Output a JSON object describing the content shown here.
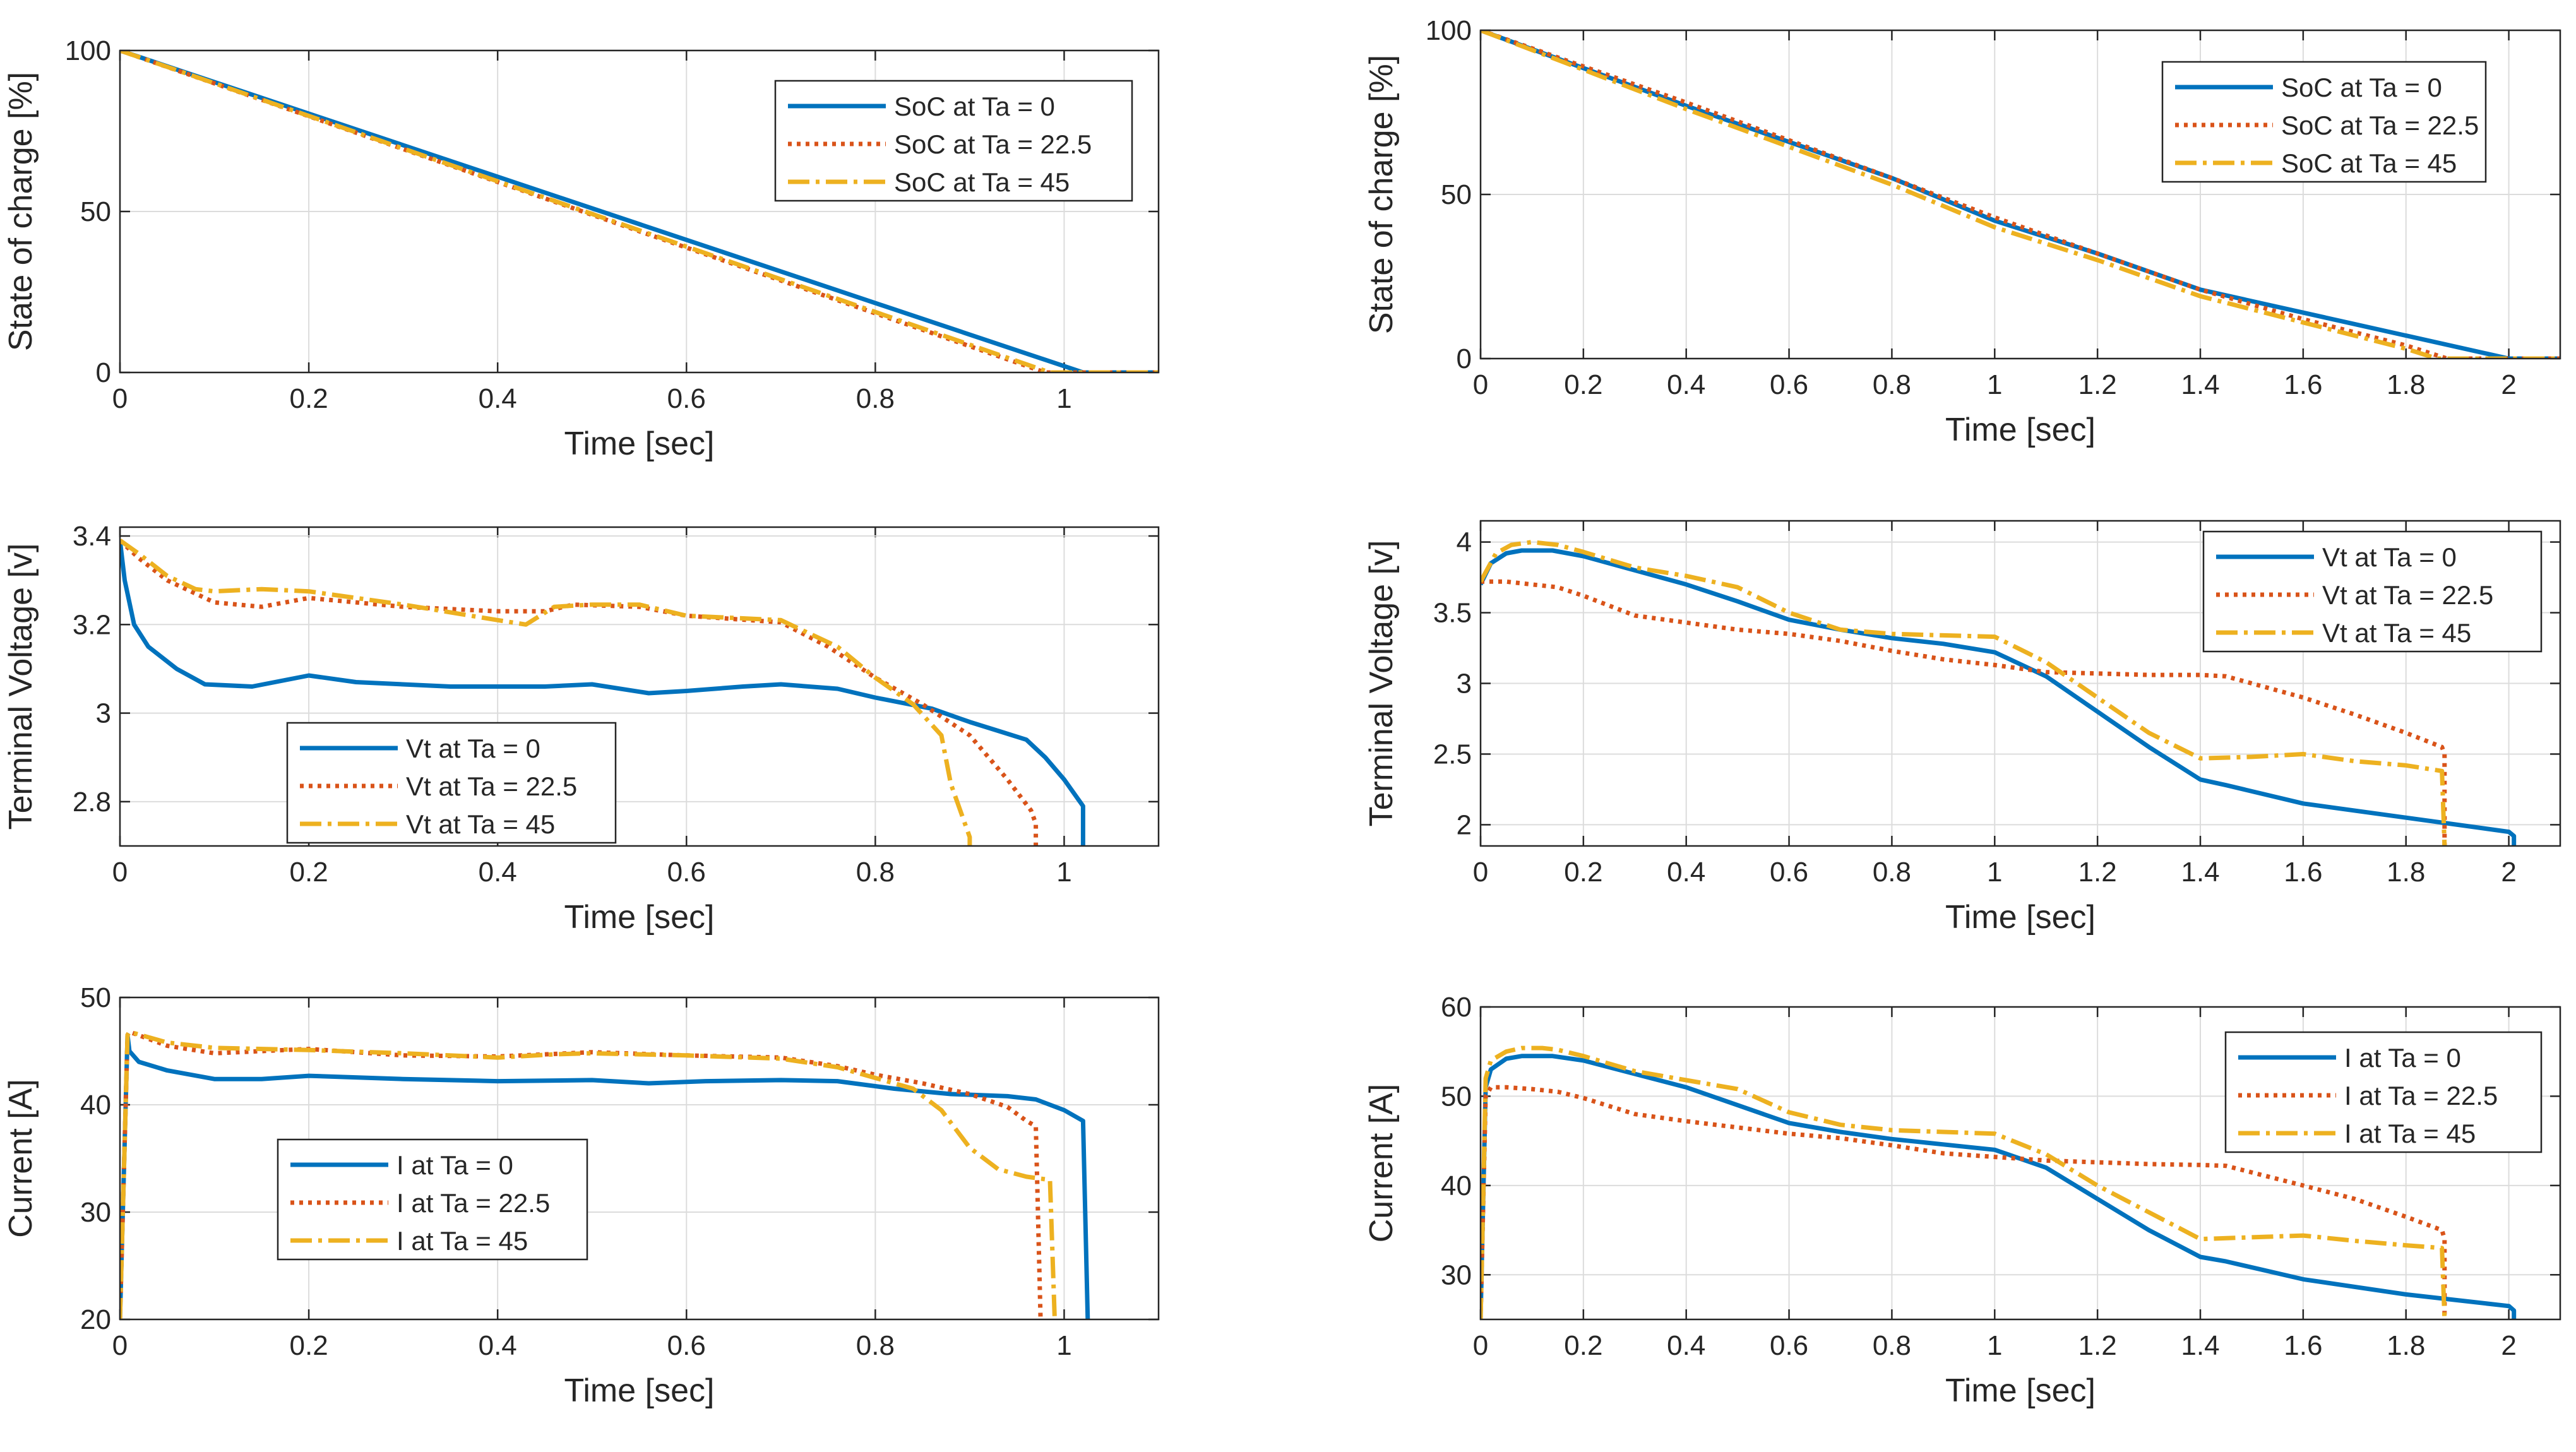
{
  "colors": {
    "ta0": "#0072BD",
    "ta225": "#D95319",
    "ta45": "#EDB120"
  },
  "chart_data": [
    {
      "id": "soc_left",
      "type": "line",
      "xlabel": "Time [sec]",
      "ylabel": "State of charge [%]",
      "xlim": [
        0,
        1.1
      ],
      "ylim": [
        0,
        100
      ],
      "xticks": [
        0,
        0.2,
        0.4,
        0.6,
        0.8,
        1
      ],
      "xtick_labels": [
        "0",
        "0.2",
        "0.4",
        "0.6",
        "0.8",
        "1"
      ],
      "yticks": [
        0,
        50,
        100
      ],
      "ytick_labels": [
        "0",
        "50",
        "100"
      ],
      "legend_position": "top-right",
      "series": [
        {
          "name": "SoC at Ta = 0",
          "x": [
            0,
            1.02,
            1.1
          ],
          "y": [
            100,
            0,
            0
          ]
        },
        {
          "name": "SoC at Ta = 22.5",
          "x": [
            0,
            0.98,
            1.1
          ],
          "y": [
            100,
            0,
            0
          ]
        },
        {
          "name": "SoC at Ta = 45",
          "x": [
            0,
            0.985,
            1.1
          ],
          "y": [
            100,
            0,
            0
          ]
        }
      ]
    },
    {
      "id": "vt_left",
      "type": "line",
      "xlabel": "Time [sec]",
      "ylabel": "Terminal Voltage [v]",
      "xlim": [
        0,
        1.1
      ],
      "ylim": [
        2.7,
        3.42
      ],
      "xticks": [
        0,
        0.2,
        0.4,
        0.6,
        0.8,
        1
      ],
      "xtick_labels": [
        "0",
        "0.2",
        "0.4",
        "0.6",
        "0.8",
        "1"
      ],
      "yticks": [
        2.8,
        3,
        3.2,
        3.4
      ],
      "ytick_labels": [
        "2.8",
        "3",
        "3.2",
        "3.4"
      ],
      "legend_position": "bottom-left",
      "series": [
        {
          "name": "Vt at Ta = 0",
          "x": [
            0,
            0.005,
            0.015,
            0.03,
            0.06,
            0.09,
            0.14,
            0.2,
            0.25,
            0.35,
            0.45,
            0.5,
            0.56,
            0.6,
            0.66,
            0.7,
            0.76,
            0.8,
            0.86,
            0.9,
            0.93,
            0.96,
            0.98,
            1.0,
            1.02,
            1.02
          ],
          "y": [
            3.39,
            3.3,
            3.2,
            3.15,
            3.1,
            3.065,
            3.06,
            3.085,
            3.07,
            3.06,
            3.06,
            3.065,
            3.045,
            3.05,
            3.06,
            3.065,
            3.055,
            3.035,
            3.01,
            2.98,
            2.96,
            2.94,
            2.9,
            2.85,
            2.79,
            2.5
          ]
        },
        {
          "name": "Vt at Ta = 22.5",
          "x": [
            0,
            0.02,
            0.05,
            0.08,
            0.1,
            0.15,
            0.2,
            0.3,
            0.4,
            0.45,
            0.48,
            0.55,
            0.6,
            0.7,
            0.75,
            0.8,
            0.85,
            0.9,
            0.94,
            0.965,
            0.97,
            0.97
          ],
          "y": [
            3.39,
            3.35,
            3.3,
            3.27,
            3.25,
            3.24,
            3.26,
            3.24,
            3.23,
            3.23,
            3.245,
            3.24,
            3.22,
            3.205,
            3.15,
            3.08,
            3.02,
            2.95,
            2.85,
            2.78,
            2.75,
            2.5
          ]
        },
        {
          "name": "Vt at Ta = 45",
          "x": [
            0,
            0.02,
            0.05,
            0.08,
            0.1,
            0.15,
            0.2,
            0.3,
            0.4,
            0.43,
            0.46,
            0.5,
            0.55,
            0.6,
            0.7,
            0.76,
            0.8,
            0.84,
            0.87,
            0.88,
            0.9,
            0.9
          ],
          "y": [
            3.39,
            3.36,
            3.31,
            3.28,
            3.275,
            3.28,
            3.275,
            3.245,
            3.21,
            3.2,
            3.24,
            3.245,
            3.245,
            3.22,
            3.21,
            3.15,
            3.08,
            3.02,
            2.95,
            2.84,
            2.72,
            2.5
          ]
        }
      ]
    },
    {
      "id": "i_left",
      "type": "line",
      "xlabel": "Time [sec]",
      "ylabel": "Current [A]",
      "xlim": [
        0,
        1.1
      ],
      "ylim": [
        20,
        50
      ],
      "xticks": [
        0,
        0.2,
        0.4,
        0.6,
        0.8,
        1
      ],
      "xtick_labels": [
        "0",
        "0.2",
        "0.4",
        "0.6",
        "0.8",
        "1"
      ],
      "yticks": [
        20,
        30,
        40,
        50
      ],
      "ytick_labels": [
        "20",
        "30",
        "40",
        "50"
      ],
      "legend_position": "bottom-left",
      "series": [
        {
          "name": "I at Ta = 0",
          "x": [
            0,
            0.008,
            0.01,
            0.02,
            0.05,
            0.1,
            0.15,
            0.2,
            0.3,
            0.4,
            0.5,
            0.56,
            0.62,
            0.7,
            0.76,
            0.82,
            0.88,
            0.94,
            0.97,
            1.0,
            1.02,
            1.025
          ],
          "y": [
            20,
            46.5,
            45,
            44,
            43.2,
            42.4,
            42.4,
            42.7,
            42.4,
            42.2,
            42.3,
            42,
            42.2,
            42.3,
            42.2,
            41.5,
            41,
            40.8,
            40.5,
            39.5,
            38.5,
            20
          ]
        },
        {
          "name": "I at Ta = 22.5",
          "x": [
            0,
            0.008,
            0.01,
            0.05,
            0.1,
            0.2,
            0.3,
            0.4,
            0.5,
            0.6,
            0.7,
            0.76,
            0.8,
            0.85,
            0.9,
            0.94,
            0.96,
            0.97,
            0.975
          ],
          "y": [
            20,
            46.5,
            46.8,
            45.5,
            44.8,
            45.2,
            44.6,
            44.5,
            44.9,
            44.6,
            44.4,
            43.6,
            42.8,
            42,
            41,
            39.8,
            38.5,
            38,
            20
          ]
        },
        {
          "name": "I at Ta = 45",
          "x": [
            0,
            0.008,
            0.01,
            0.05,
            0.1,
            0.2,
            0.3,
            0.4,
            0.46,
            0.5,
            0.6,
            0.7,
            0.76,
            0.8,
            0.84,
            0.87,
            0.9,
            0.93,
            0.96,
            0.985,
            0.99
          ],
          "y": [
            20,
            46.5,
            46.8,
            45.8,
            45.3,
            45.1,
            44.8,
            44.4,
            44.7,
            44.8,
            44.6,
            44.3,
            43.5,
            42.5,
            41.5,
            39.5,
            36,
            34,
            33.3,
            33,
            20
          ]
        }
      ]
    },
    {
      "id": "soc_right",
      "type": "line",
      "xlabel": "Time [sec]",
      "ylabel": "State of charge [%]",
      "xlim": [
        0,
        2.1
      ],
      "ylim": [
        0,
        100
      ],
      "xticks": [
        0,
        0.2,
        0.4,
        0.6,
        0.8,
        1,
        1.2,
        1.4,
        1.6,
        1.8,
        2
      ],
      "xtick_labels": [
        "0",
        "0.2",
        "0.4",
        "0.6",
        "0.8",
        "1",
        "1.2",
        "1.4",
        "1.6",
        "1.8",
        "2"
      ],
      "yticks": [
        0,
        50,
        100
      ],
      "ytick_labels": [
        "0",
        "50",
        "100"
      ],
      "legend_position": "top-right",
      "series": [
        {
          "name": "SoC at Ta = 0",
          "x": [
            0,
            0.4,
            0.8,
            1.0,
            1.2,
            1.4,
            1.6,
            1.8,
            2.0,
            2.1
          ],
          "y": [
            100,
            77,
            55,
            42,
            32,
            21,
            14,
            7,
            0,
            0
          ]
        },
        {
          "name": "SoC at Ta = 22.5",
          "x": [
            0,
            0.4,
            0.8,
            1.0,
            1.2,
            1.4,
            1.6,
            1.8,
            1.88,
            2.1
          ],
          "y": [
            100,
            78,
            55,
            43,
            32,
            21,
            12,
            4,
            0,
            0
          ]
        },
        {
          "name": "SoC at Ta = 45",
          "x": [
            0,
            0.4,
            0.8,
            1.0,
            1.2,
            1.4,
            1.6,
            1.8,
            1.86,
            2.1
          ],
          "y": [
            100,
            76,
            53,
            40,
            30,
            19,
            11,
            3,
            0,
            0
          ]
        }
      ]
    },
    {
      "id": "vt_right",
      "type": "line",
      "xlabel": "Time [sec]",
      "ylabel": "Terminal Voltage [v]",
      "xlim": [
        0,
        2.1
      ],
      "ylim": [
        1.85,
        4.15
      ],
      "xticks": [
        0,
        0.2,
        0.4,
        0.6,
        0.8,
        1,
        1.2,
        1.4,
        1.6,
        1.8,
        2
      ],
      "xtick_labels": [
        "0",
        "0.2",
        "0.4",
        "0.6",
        "0.8",
        "1",
        "1.2",
        "1.4",
        "1.6",
        "1.8",
        "2"
      ],
      "yticks": [
        2,
        2.5,
        3,
        3.5,
        4
      ],
      "ytick_labels": [
        "2",
        "2.5",
        "3",
        "3.5",
        "4"
      ],
      "legend_position": "top-right",
      "series": [
        {
          "name": "Vt at Ta = 0",
          "x": [
            0,
            0.02,
            0.05,
            0.08,
            0.14,
            0.2,
            0.3,
            0.4,
            0.5,
            0.6,
            0.7,
            0.8,
            0.9,
            1.0,
            1.1,
            1.2,
            1.3,
            1.4,
            1.45,
            1.6,
            1.8,
            2.0,
            2.01,
            2.01
          ],
          "y": [
            3.7,
            3.85,
            3.92,
            3.94,
            3.94,
            3.9,
            3.8,
            3.7,
            3.58,
            3.45,
            3.38,
            3.32,
            3.28,
            3.22,
            3.05,
            2.8,
            2.55,
            2.32,
            2.28,
            2.15,
            2.05,
            1.95,
            1.92,
            1.85
          ]
        },
        {
          "name": "Vt at Ta = 22.5",
          "x": [
            0,
            0.05,
            0.1,
            0.15,
            0.2,
            0.3,
            0.4,
            0.5,
            0.6,
            0.7,
            0.8,
            0.9,
            1.0,
            1.1,
            1.2,
            1.3,
            1.4,
            1.45,
            1.6,
            1.7,
            1.8,
            1.87,
            1.875,
            1.875
          ],
          "y": [
            3.72,
            3.72,
            3.7,
            3.68,
            3.62,
            3.48,
            3.43,
            3.38,
            3.35,
            3.3,
            3.23,
            3.17,
            3.13,
            3.08,
            3.07,
            3.06,
            3.06,
            3.05,
            2.9,
            2.78,
            2.65,
            2.55,
            2.5,
            1.85
          ]
        },
        {
          "name": "Vt at Ta = 45",
          "x": [
            0,
            0.03,
            0.06,
            0.1,
            0.15,
            0.2,
            0.3,
            0.4,
            0.5,
            0.6,
            0.7,
            0.8,
            0.9,
            1.0,
            1.1,
            1.2,
            1.3,
            1.4,
            1.5,
            1.6,
            1.7,
            1.8,
            1.87,
            1.875
          ],
          "y": [
            3.72,
            3.92,
            3.98,
            4.0,
            3.98,
            3.93,
            3.82,
            3.76,
            3.68,
            3.5,
            3.38,
            3.35,
            3.34,
            3.33,
            3.15,
            2.9,
            2.65,
            2.47,
            2.48,
            2.5,
            2.45,
            2.42,
            2.38,
            1.85
          ]
        }
      ]
    },
    {
      "id": "i_right",
      "type": "line",
      "xlabel": "Time [sec]",
      "ylabel": "Current [A]",
      "xlim": [
        0,
        2.1
      ],
      "ylim": [
        25,
        60
      ],
      "xticks": [
        0,
        0.2,
        0.4,
        0.6,
        0.8,
        1,
        1.2,
        1.4,
        1.6,
        1.8,
        2
      ],
      "xtick_labels": [
        "0",
        "0.2",
        "0.4",
        "0.6",
        "0.8",
        "1",
        "1.2",
        "1.4",
        "1.6",
        "1.8",
        "2"
      ],
      "yticks": [
        30,
        40,
        50,
        60
      ],
      "ytick_labels": [
        "30",
        "40",
        "50",
        "60"
      ],
      "legend_position": "top-right",
      "series": [
        {
          "name": "I at Ta = 0",
          "x": [
            0,
            0.01,
            0.02,
            0.05,
            0.08,
            0.14,
            0.2,
            0.3,
            0.4,
            0.5,
            0.6,
            0.7,
            0.8,
            0.9,
            1.0,
            1.1,
            1.2,
            1.3,
            1.4,
            1.45,
            1.6,
            1.8,
            2.0,
            2.01,
            2.01
          ],
          "y": [
            25,
            51,
            53,
            54.2,
            54.5,
            54.5,
            54,
            52.5,
            51,
            49,
            47,
            46,
            45.2,
            44.6,
            44,
            42,
            38.5,
            35,
            32,
            31.5,
            29.5,
            27.8,
            26.5,
            26,
            25
          ]
        },
        {
          "name": "I at Ta = 22.5",
          "x": [
            0,
            0.01,
            0.02,
            0.05,
            0.1,
            0.15,
            0.2,
            0.3,
            0.4,
            0.5,
            0.6,
            0.7,
            0.8,
            0.9,
            1.0,
            1.1,
            1.2,
            1.3,
            1.4,
            1.45,
            1.6,
            1.7,
            1.8,
            1.87,
            1.875,
            1.875
          ],
          "y": [
            25,
            50,
            51,
            51,
            50.8,
            50.5,
            49.8,
            48,
            47.2,
            46.5,
            45.8,
            45.3,
            44.5,
            43.6,
            43.2,
            42.8,
            42.6,
            42.4,
            42.3,
            42.2,
            40,
            38.5,
            36.5,
            35,
            34,
            25
          ]
        },
        {
          "name": "I at Ta = 45",
          "x": [
            0,
            0.01,
            0.02,
            0.05,
            0.08,
            0.12,
            0.15,
            0.2,
            0.3,
            0.4,
            0.5,
            0.6,
            0.7,
            0.8,
            0.9,
            1.0,
            1.1,
            1.2,
            1.3,
            1.4,
            1.5,
            1.6,
            1.7,
            1.8,
            1.87,
            1.875
          ],
          "y": [
            25,
            52,
            54,
            55,
            55.4,
            55.4,
            55.2,
            54.5,
            52.8,
            51.8,
            50.8,
            48.2,
            46.8,
            46.2,
            46,
            45.8,
            43.5,
            40,
            37,
            34,
            34.2,
            34.4,
            33.8,
            33.3,
            33,
            25
          ]
        }
      ]
    }
  ]
}
